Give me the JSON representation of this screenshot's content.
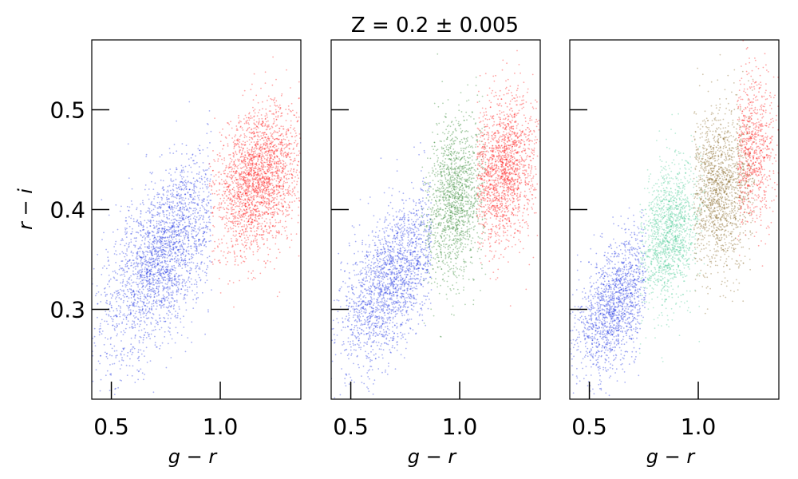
{
  "figure": {
    "title": "Z = 0.2 ± 0.005"
  },
  "chart_data": [
    {
      "type": "scatter",
      "panel": "left",
      "xlabel": "g − r",
      "ylabel": "r − i",
      "xlim": [
        0.41,
        1.37
      ],
      "ylim": [
        0.21,
        0.57
      ],
      "xticks": [
        0.5,
        1.0
      ],
      "yticks": [
        0.3,
        0.4,
        0.5
      ],
      "grid": false,
      "series": [
        {
          "color": "#0a1fe0",
          "center": [
            0.74,
            0.355
          ],
          "spread": [
            0.14,
            0.04
          ],
          "slope": 0.21,
          "x_range": [
            0.41,
            0.96
          ],
          "count": 2600
        },
        {
          "color": "#ff0000",
          "center": [
            1.17,
            0.43
          ],
          "spread": [
            0.1,
            0.035
          ],
          "slope": 0.1,
          "x_range": [
            0.95,
            1.37
          ],
          "count": 2400
        }
      ]
    },
    {
      "type": "scatter",
      "panel": "middle",
      "xlabel": "g − r",
      "ylabel": "",
      "xlim": [
        0.41,
        1.37
      ],
      "ylim": [
        0.21,
        0.57
      ],
      "xticks": [
        0.5,
        1.0
      ],
      "yticks": [
        0.3,
        0.4,
        0.5
      ],
      "grid": false,
      "series": [
        {
          "color": "#0a1fe0",
          "center": [
            0.69,
            0.33
          ],
          "spread": [
            0.12,
            0.035
          ],
          "slope": 0.21,
          "x_range": [
            0.41,
            0.87
          ],
          "count": 2100
        },
        {
          "color": "#1d7a1d",
          "center": [
            0.98,
            0.41
          ],
          "spread": [
            0.07,
            0.04
          ],
          "slope": 0.1,
          "x_range": [
            0.82,
            1.12
          ],
          "count": 1500
        },
        {
          "color": "#ff0000",
          "center": [
            1.2,
            0.44
          ],
          "spread": [
            0.08,
            0.035
          ],
          "slope": 0.08,
          "x_range": [
            1.08,
            1.37
          ],
          "count": 1800
        }
      ]
    },
    {
      "type": "scatter",
      "panel": "right",
      "xlabel": "g − r",
      "ylabel": "",
      "xlim": [
        0.41,
        1.37
      ],
      "ylim": [
        0.21,
        0.57
      ],
      "xticks": [
        0.5,
        1.0
      ],
      "yticks": [
        0.3,
        0.4,
        0.5
      ],
      "grid": false,
      "series": [
        {
          "color": "#0a1fe0",
          "center": [
            0.62,
            0.305
          ],
          "spread": [
            0.09,
            0.03
          ],
          "slope": 0.21,
          "x_range": [
            0.41,
            0.76
          ],
          "count": 1600
        },
        {
          "color": "#3fc98f",
          "center": [
            0.86,
            0.375
          ],
          "spread": [
            0.07,
            0.035
          ],
          "slope": 0.14,
          "x_range": [
            0.73,
            1.04
          ],
          "count": 1500
        },
        {
          "color": "#7a5a10",
          "center": [
            1.1,
            0.42
          ],
          "spread": [
            0.08,
            0.04
          ],
          "slope": 0.08,
          "x_range": [
            0.98,
            1.26
          ],
          "count": 1700
        },
        {
          "color": "#ff0000",
          "center": [
            1.25,
            0.46
          ],
          "spread": [
            0.06,
            0.04
          ],
          "slope": 0.06,
          "x_range": [
            1.18,
            1.37
          ],
          "count": 900
        }
      ]
    }
  ]
}
